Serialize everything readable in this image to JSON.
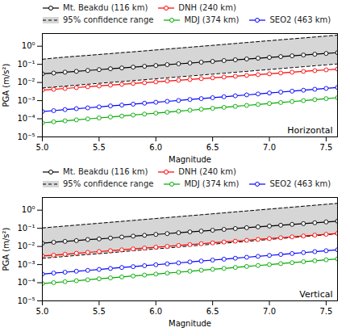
{
  "chart_data": [
    {
      "type": "line",
      "title": "Horizontal",
      "xlabel": "Magnitude",
      "ylabel": "PGA (m/s²)",
      "x": [
        5.0,
        5.1,
        5.2,
        5.3,
        5.4,
        5.5,
        5.6,
        5.7,
        5.8,
        5.9,
        6.0,
        6.1,
        6.2,
        6.3,
        6.4,
        6.5,
        6.6,
        6.7,
        6.8,
        6.9,
        7.0,
        7.1,
        7.2,
        7.3,
        7.4,
        7.5,
        7.6
      ],
      "series": [
        {
          "name": "Mt. Beakdu (116 km)",
          "color": "#000000",
          "marker": "o",
          "values": [
            0.03,
            0.033,
            0.037,
            0.041,
            0.046,
            0.051,
            0.057,
            0.063,
            0.07,
            0.078,
            0.086,
            0.096,
            0.107,
            0.118,
            0.131,
            0.145,
            0.161,
            0.178,
            0.197,
            0.218,
            0.241,
            0.267,
            0.295,
            0.326,
            0.36,
            0.398,
            0.44
          ]
        },
        {
          "name": "DNH (240 km)",
          "color": "#ff0000",
          "marker": "o",
          "values": [
            0.0038,
            0.0042,
            0.0047,
            0.0052,
            0.0058,
            0.0064,
            0.0071,
            0.0079,
            0.0088,
            0.0097,
            0.0108,
            0.012,
            0.0133,
            0.0147,
            0.0163,
            0.0181,
            0.02,
            0.0221,
            0.0245,
            0.0271,
            0.03,
            0.0332,
            0.0367,
            0.0406,
            0.0449,
            0.0497,
            0.0549
          ]
        },
        {
          "name": "95% confidence range",
          "type": "band",
          "color": "#cccccc",
          "line_style": "dashed",
          "lower": [
            0.005,
            0.0056,
            0.0063,
            0.0071,
            0.008,
            0.009,
            0.0101,
            0.0113,
            0.0127,
            0.0143,
            0.0161,
            0.0181,
            0.0203,
            0.0228,
            0.0257,
            0.0289,
            0.0325,
            0.0366,
            0.0411,
            0.0463,
            0.052,
            0.0585,
            0.0658,
            0.0741,
            0.0833,
            0.0937,
            0.1054
          ],
          "upper": [
            0.19,
            0.22,
            0.25,
            0.28,
            0.31,
            0.35,
            0.39,
            0.44,
            0.49,
            0.55,
            0.62,
            0.7,
            0.78,
            0.88,
            0.99,
            1.11,
            1.25,
            1.41,
            1.59,
            1.79,
            2.01,
            2.26,
            2.54,
            2.86,
            3.22,
            3.62,
            4.07
          ]
        },
        {
          "name": "MDJ (374 km)",
          "color": "#00aa00",
          "marker": "o",
          "values": [
            6e-05,
            6.8e-05,
            7.7e-05,
            8.7e-05,
            9.8e-05,
            0.000111,
            0.000125,
            0.000141,
            0.00016,
            0.000181,
            0.000204,
            0.000231,
            0.000261,
            0.000295,
            0.000333,
            0.000377,
            0.000426,
            0.000481,
            0.000544,
            0.000615,
            0.000695,
            0.000786,
            0.000889,
            0.001004,
            0.001135,
            0.001283,
            0.00145
          ]
        },
        {
          "name": "SEO2 (463 km)",
          "color": "#0000ff",
          "marker": "o",
          "values": [
            0.00025,
            0.00028,
            0.00032,
            0.00036,
            0.0004,
            0.00045,
            0.00051,
            0.00057,
            0.00064,
            0.00072,
            0.00081,
            0.00091,
            0.00102,
            0.00115,
            0.00129,
            0.00145,
            0.00163,
            0.00184,
            0.00207,
            0.00233,
            0.00262,
            0.00295,
            0.00332,
            0.00374,
            0.00421,
            0.00473,
            0.00533
          ]
        }
      ],
      "xlim": [
        5.0,
        7.6
      ],
      "xticks": [
        {
          "value": 5.0,
          "label": "5.0"
        },
        5.5,
        {
          "value": 6.0,
          "label": "6.0"
        },
        6.5,
        {
          "value": 7.0,
          "label": "7.0"
        },
        7.5
      ],
      "ylim": [
        1e-05,
        5.0
      ],
      "yticks": [
        {
          "value": 1e-05,
          "label": "10⁻⁵"
        },
        {
          "value": 0.0001,
          "label": "10⁻⁴"
        },
        {
          "value": 0.001,
          "label": "10⁻³"
        },
        {
          "value": 0.01,
          "label": "10⁻²"
        },
        {
          "value": 0.1,
          "label": "10⁻¹"
        },
        {
          "value": 1,
          "label": "10⁰"
        }
      ],
      "log": "y",
      "grid": false,
      "legend": "upper left"
    },
    {
      "type": "line",
      "title": "Vertical",
      "xlabel": "Magnitude",
      "ylabel": "PGA (m/s²)",
      "x": [
        5.0,
        5.1,
        5.2,
        5.3,
        5.4,
        5.5,
        5.6,
        5.7,
        5.8,
        5.9,
        6.0,
        6.1,
        6.2,
        6.3,
        6.4,
        6.5,
        6.6,
        6.7,
        6.8,
        6.9,
        7.0,
        7.1,
        7.2,
        7.3,
        7.4,
        7.5,
        7.6
      ],
      "series": [
        {
          "name": "Mt. Beakdu (116 km)",
          "color": "#000000",
          "marker": "o",
          "values": [
            0.015,
            0.017,
            0.019,
            0.021,
            0.024,
            0.026,
            0.029,
            0.033,
            0.037,
            0.041,
            0.046,
            0.051,
            0.057,
            0.063,
            0.07,
            0.078,
            0.087,
            0.097,
            0.108,
            0.12,
            0.133,
            0.148,
            0.164,
            0.182,
            0.202,
            0.224,
            0.249
          ]
        },
        {
          "name": "DNH (240 km)",
          "color": "#ff0000",
          "marker": "o",
          "values": [
            0.003,
            0.0033,
            0.0037,
            0.0042,
            0.0047,
            0.0052,
            0.0058,
            0.0065,
            0.0073,
            0.0081,
            0.0091,
            0.0101,
            0.0113,
            0.0126,
            0.0141,
            0.0157,
            0.0175,
            0.0195,
            0.0218,
            0.0243,
            0.0271,
            0.0302,
            0.0337,
            0.0376,
            0.0419,
            0.0467,
            0.0521
          ]
        },
        {
          "name": "95% confidence range",
          "type": "band",
          "color": "#cccccc",
          "line_style": "dashed",
          "lower": [
            0.0022,
            0.0025,
            0.0028,
            0.0032,
            0.0036,
            0.004,
            0.0045,
            0.0051,
            0.0058,
            0.0065,
            0.0073,
            0.0082,
            0.0093,
            0.0105,
            0.0118,
            0.0133,
            0.015,
            0.0169,
            0.019,
            0.0215,
            0.0242,
            0.0273,
            0.0308,
            0.0347,
            0.0391,
            0.0441,
            0.0498
          ],
          "upper": [
            0.105,
            0.118,
            0.133,
            0.15,
            0.169,
            0.19,
            0.214,
            0.241,
            0.272,
            0.307,
            0.346,
            0.39,
            0.439,
            0.495,
            0.558,
            0.63,
            0.71,
            0.801,
            0.903,
            1.019,
            1.149,
            1.296,
            1.462,
            1.649,
            1.861,
            2.1,
            2.369
          ]
        },
        {
          "name": "MDJ (374 km)",
          "color": "#00aa00",
          "marker": "o",
          "values": [
            9e-05,
            0.000101,
            0.000114,
            0.000129,
            0.000145,
            0.000164,
            0.000185,
            0.000208,
            0.000235,
            0.000265,
            0.000299,
            0.000337,
            0.00038,
            0.00043,
            0.000485,
            0.000547,
            0.000617,
            0.000696,
            0.000786,
            0.000887,
            0.001001,
            0.00113,
            0.001275,
            0.001439,
            0.001624,
            0.001833,
            0.00207
          ]
        },
        {
          "name": "SEO2 (463 km)",
          "color": "#0000ff",
          "marker": "o",
          "values": [
            0.0003,
            0.00034,
            0.00038,
            0.00043,
            0.00048,
            0.00054,
            0.00061,
            0.00069,
            0.00077,
            0.00087,
            0.00098,
            0.0011,
            0.00124,
            0.0014,
            0.00157,
            0.00177,
            0.00199,
            0.00224,
            0.00253,
            0.00284,
            0.0032,
            0.00361,
            0.00407,
            0.00458,
            0.00516,
            0.00582,
            0.00655
          ]
        }
      ],
      "xlim": [
        5.0,
        7.6
      ],
      "xticks": [
        {
          "value": 5.0,
          "label": "5.0"
        },
        5.5,
        {
          "value": 6.0,
          "label": "6.0"
        },
        6.5,
        {
          "value": 7.0,
          "label": "7.0"
        },
        7.5
      ],
      "ylim": [
        1e-05,
        5.0
      ],
      "yticks": [
        {
          "value": 1e-05,
          "label": "10⁻⁵"
        },
        {
          "value": 0.0001,
          "label": "10⁻⁴"
        },
        {
          "value": 0.001,
          "label": "10⁻³"
        },
        {
          "value": 0.01,
          "label": "10⁻²"
        },
        {
          "value": 0.1,
          "label": "10⁻¹"
        },
        {
          "value": 1,
          "label": "10⁰"
        }
      ],
      "log": "y",
      "grid": false,
      "legend": "upper left"
    }
  ]
}
